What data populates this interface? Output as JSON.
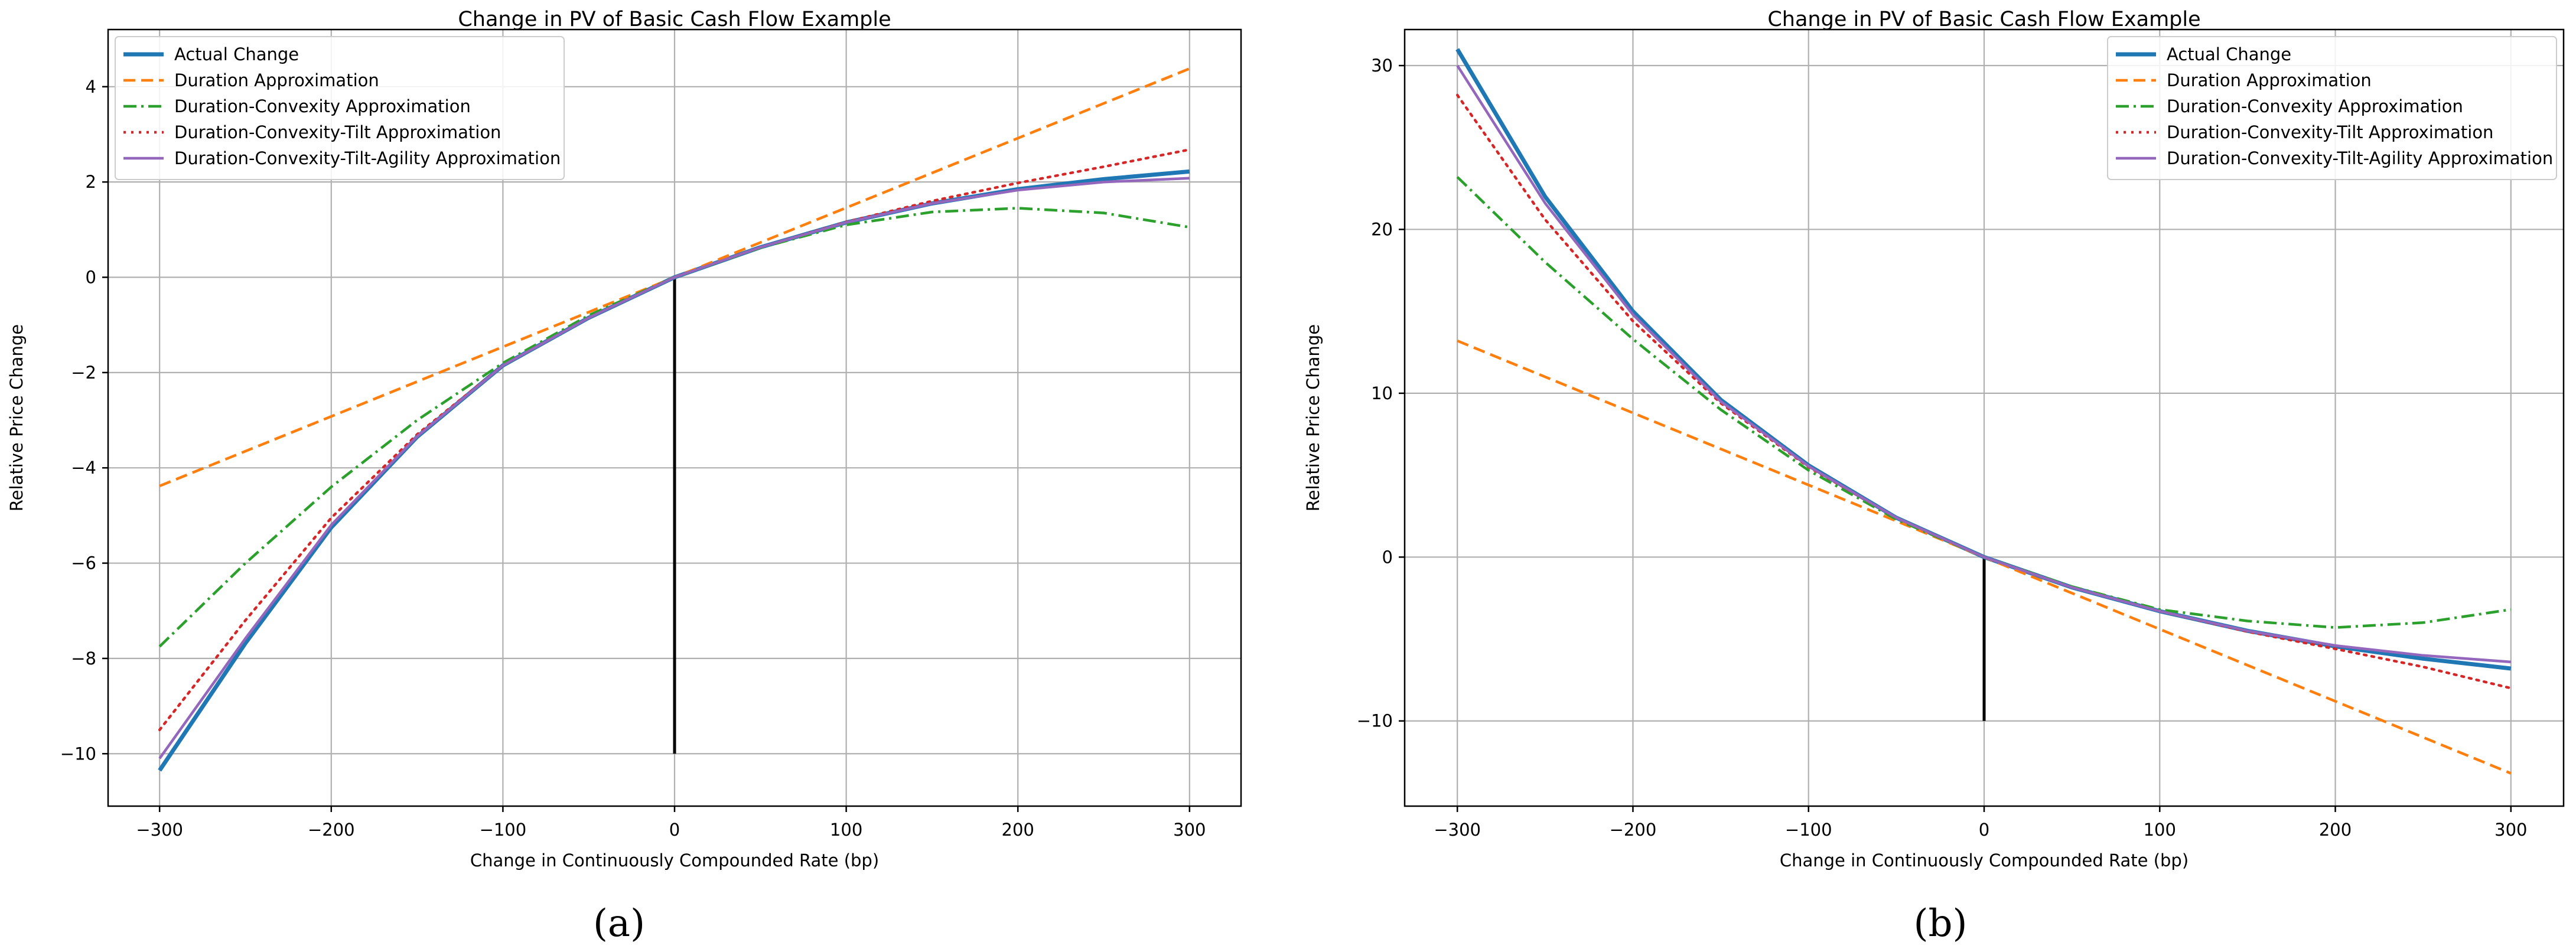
{
  "captions": [
    "(a)",
    "(b)"
  ],
  "colors": {
    "actual": "#1f77b4",
    "duration": "#ff7f0e",
    "convexity": "#2ca02c",
    "tilt": "#d62728",
    "agility": "#9467bd",
    "grid": "#b0b0b0",
    "zero_line": "#000000"
  },
  "chart_data": [
    {
      "type": "line",
      "title": "Change in PV of Basic Cash Flow Example",
      "xlabel": "Change in Continuously Compounded Rate (bp)",
      "ylabel": "Relative Price Change",
      "xlim": [
        -330,
        330
      ],
      "ylim": [
        -11.1,
        5.2
      ],
      "xticks": [
        -300,
        -200,
        -100,
        0,
        100,
        200,
        300
      ],
      "xtick_labels": [
        "−300",
        "−200",
        "−100",
        "0",
        "100",
        "200",
        "300"
      ],
      "yticks": [
        -10,
        -8,
        -6,
        -4,
        -2,
        0,
        2,
        4
      ],
      "ytick_labels": [
        "−10",
        "−8",
        "−6",
        "−4",
        "−2",
        "0",
        "2",
        "4"
      ],
      "grid": true,
      "legend_position": "top-left",
      "vertical_line": {
        "x": 0,
        "y_from": -10,
        "y_to": 0
      },
      "series": [
        {
          "name": "Actual Change",
          "style": "solid",
          "color": "#1f77b4",
          "x": [
            -300,
            -250,
            -200,
            -150,
            -100,
            -50,
            0,
            50,
            100,
            150,
            200,
            250,
            300
          ],
          "y": [
            -10.35,
            -7.68,
            -5.25,
            -3.35,
            -1.85,
            -0.85,
            0,
            0.63,
            1.15,
            1.55,
            1.85,
            2.06,
            2.22
          ]
        },
        {
          "name": "Duration Approximation",
          "style": "dashed",
          "color": "#ff7f0e",
          "x": [
            -300,
            300
          ],
          "y": [
            -4.38,
            4.38
          ]
        },
        {
          "name": "Duration-Convexity Approximation",
          "style": "dashdot",
          "color": "#2ca02c",
          "x": [
            -300,
            -250,
            -200,
            -150,
            -100,
            -50,
            0,
            50,
            100,
            150,
            200,
            250,
            300
          ],
          "y": [
            -7.75,
            -6.0,
            -4.4,
            -3.0,
            -1.8,
            -0.8,
            0,
            0.62,
            1.1,
            1.37,
            1.45,
            1.35,
            1.05
          ]
        },
        {
          "name": "Duration-Convexity-Tilt Approximation",
          "style": "dotted",
          "color": "#d62728",
          "x": [
            -300,
            -250,
            -200,
            -150,
            -100,
            -50,
            0,
            50,
            100,
            150,
            200,
            250,
            300
          ],
          "y": [
            -9.5,
            -7.2,
            -5.05,
            -3.3,
            -1.85,
            -0.85,
            0,
            0.63,
            1.16,
            1.6,
            1.98,
            2.32,
            2.68
          ]
        },
        {
          "name": "Duration-Convexity-Tilt-Agility Approximation",
          "style": "solid-thin",
          "color": "#9467bd",
          "x": [
            -300,
            -250,
            -200,
            -150,
            -100,
            -50,
            0,
            50,
            100,
            150,
            200,
            250,
            300
          ],
          "y": [
            -10.1,
            -7.58,
            -5.2,
            -3.34,
            -1.85,
            -0.85,
            0,
            0.63,
            1.15,
            1.55,
            1.83,
            2.0,
            2.08
          ]
        }
      ]
    },
    {
      "type": "line",
      "title": "Change in PV of Basic Cash Flow Example",
      "xlabel": "Change in Continuously Compounded Rate (bp)",
      "ylabel": "Relative Price Change",
      "xlim": [
        -330,
        330
      ],
      "ylim": [
        -15.2,
        32.2
      ],
      "xticks": [
        -300,
        -200,
        -100,
        0,
        100,
        200,
        300
      ],
      "xtick_labels": [
        "−300",
        "−200",
        "−100",
        "0",
        "100",
        "200",
        "300"
      ],
      "yticks": [
        -10,
        0,
        10,
        20,
        30
      ],
      "ytick_labels": [
        "−10",
        "0",
        "10",
        "20",
        "30"
      ],
      "grid": true,
      "legend_position": "top-right",
      "vertical_line": {
        "x": 0,
        "y_from": -10,
        "y_to": 0
      },
      "series": [
        {
          "name": "Actual Change",
          "style": "solid",
          "color": "#1f77b4",
          "x": [
            -300,
            -250,
            -200,
            -150,
            -100,
            -50,
            0,
            50,
            100,
            150,
            200,
            250,
            300
          ],
          "y": [
            31.0,
            22.0,
            15.0,
            9.6,
            5.6,
            2.4,
            0,
            -1.85,
            -3.3,
            -4.5,
            -5.45,
            -6.2,
            -6.8
          ]
        },
        {
          "name": "Duration Approximation",
          "style": "dashed",
          "color": "#ff7f0e",
          "x": [
            -300,
            300
          ],
          "y": [
            13.2,
            -13.2
          ]
        },
        {
          "name": "Duration-Convexity Approximation",
          "style": "dashdot",
          "color": "#2ca02c",
          "x": [
            -300,
            -250,
            -200,
            -150,
            -100,
            -50,
            0,
            50,
            100,
            150,
            200,
            250,
            300
          ],
          "y": [
            23.2,
            18.0,
            13.3,
            9.0,
            5.3,
            2.3,
            0,
            -1.8,
            -3.2,
            -3.9,
            -4.3,
            -4.0,
            -3.2
          ]
        },
        {
          "name": "Duration-Convexity-Tilt Approximation",
          "style": "dotted",
          "color": "#d62728",
          "x": [
            -300,
            -250,
            -200,
            -150,
            -100,
            -50,
            0,
            50,
            100,
            150,
            200,
            250,
            300
          ],
          "y": [
            28.2,
            20.6,
            14.4,
            9.4,
            5.5,
            2.4,
            0,
            -1.85,
            -3.3,
            -4.55,
            -5.6,
            -6.7,
            -8.0
          ]
        },
        {
          "name": "Duration-Convexity-Tilt-Agility Approximation",
          "style": "solid-thin",
          "color": "#9467bd",
          "x": [
            -300,
            -250,
            -200,
            -150,
            -100,
            -50,
            0,
            50,
            100,
            150,
            200,
            250,
            300
          ],
          "y": [
            30.0,
            21.6,
            14.8,
            9.5,
            5.55,
            2.4,
            0,
            -1.85,
            -3.3,
            -4.5,
            -5.4,
            -6.0,
            -6.4
          ]
        }
      ]
    }
  ]
}
